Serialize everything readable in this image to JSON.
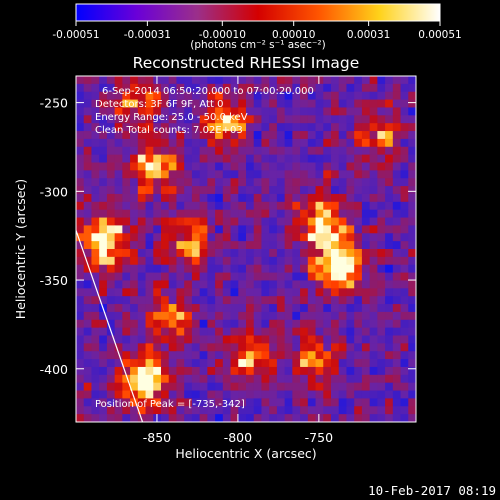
{
  "chart_data": {
    "type": "heatmap",
    "title": "Reconstructed RHESSI Image",
    "xlabel": "Heliocentric X (arcsec)",
    "ylabel": "Heliocentric Y (arcsec)",
    "xlim": [
      -900,
      -690
    ],
    "ylim": [
      -430,
      -235
    ],
    "xticks": [
      "-850",
      "-800",
      "-750"
    ],
    "xtick_values": [
      -850,
      -800,
      -750
    ],
    "yticks": [
      "-250",
      "-300",
      "-350",
      "-400"
    ],
    "ytick_values": [
      -250,
      -300,
      -350,
      -400
    ],
    "colorbar": {
      "ticks": [
        "-0.00051",
        "-0.00031",
        "-0.00010",
        "0.00010",
        "0.00031",
        "0.00051"
      ],
      "tick_values": [
        -0.00051,
        -0.00031,
        -0.0001,
        0.0001,
        0.00031,
        0.00051
      ],
      "range": [
        -0.00051,
        0.00051
      ],
      "units": "(photons cm⁻² s⁻¹ asec⁻²)",
      "colormap": [
        "#0000ff",
        "#6a00d8",
        "#9b2f8a",
        "#d40000",
        "#ff5500",
        "#ffd21a",
        "#ffffff"
      ]
    },
    "annotations": {
      "time_range": "6-Sep-2014 06:50:20.000 to 07:00:20.000",
      "detectors": "Detectors: 3F 6F 9F, Att 0",
      "energy": "Energy Range: 25.0 - 50.0 keV",
      "method": "Clean     Total counts: 7.02E+03",
      "peak": "Position of Peak = [-735,-342]"
    },
    "peak": {
      "x": -735,
      "y": -342
    },
    "bright_sources": [
      {
        "x": -737,
        "y": -342,
        "strength": 0.95
      },
      {
        "x": -748,
        "y": -318,
        "strength": 0.75
      },
      {
        "x": -858,
        "y": -407,
        "strength": 0.85
      },
      {
        "x": -882,
        "y": -328,
        "strength": 0.8
      },
      {
        "x": -852,
        "y": -286,
        "strength": 0.65
      },
      {
        "x": -808,
        "y": -262,
        "strength": 0.6
      },
      {
        "x": -830,
        "y": -328,
        "strength": 0.55
      },
      {
        "x": -842,
        "y": -372,
        "strength": 0.5
      },
      {
        "x": -792,
        "y": -393,
        "strength": 0.55
      },
      {
        "x": -752,
        "y": -395,
        "strength": 0.5
      },
      {
        "x": -712,
        "y": -268,
        "strength": 0.45
      },
      {
        "x": -862,
        "y": -250,
        "strength": 0.45
      }
    ],
    "limb_line": [
      [
        -900,
        -322
      ],
      [
        -857,
        -435
      ]
    ]
  },
  "footer": {
    "timestamp": "10-Feb-2017 08:19"
  }
}
